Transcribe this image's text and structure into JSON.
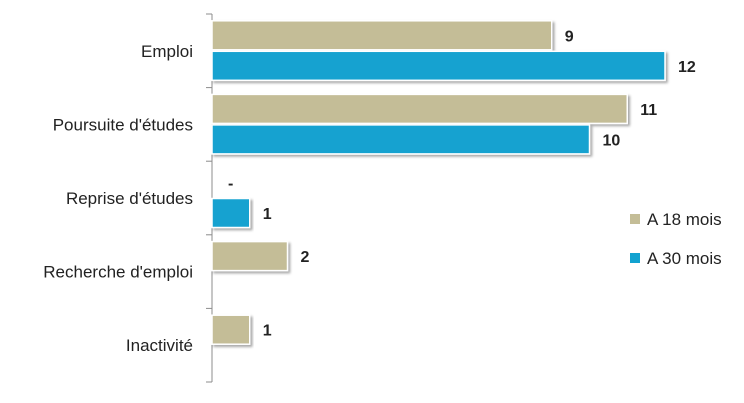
{
  "chart_data": {
    "type": "bar",
    "orientation": "horizontal",
    "categories": [
      "Emploi",
      "Poursuite d'études",
      "Reprise d'études",
      "Recherche d'emploi",
      "Inactivité"
    ],
    "series": [
      {
        "name": "A 18 mois",
        "color": "#c4bd97",
        "values": [
          9,
          11,
          null,
          2,
          1
        ],
        "value_labels": [
          "9",
          "11",
          "-",
          "2",
          "1"
        ]
      },
      {
        "name": "A 30 mois",
        "color": "#12a2d0",
        "values": [
          12,
          10,
          1,
          null,
          null
        ],
        "value_labels": [
          "12",
          "10",
          "1",
          "",
          ""
        ]
      }
    ],
    "xlim": [
      0,
      12.5
    ],
    "grid": false,
    "legend_position": "right"
  }
}
